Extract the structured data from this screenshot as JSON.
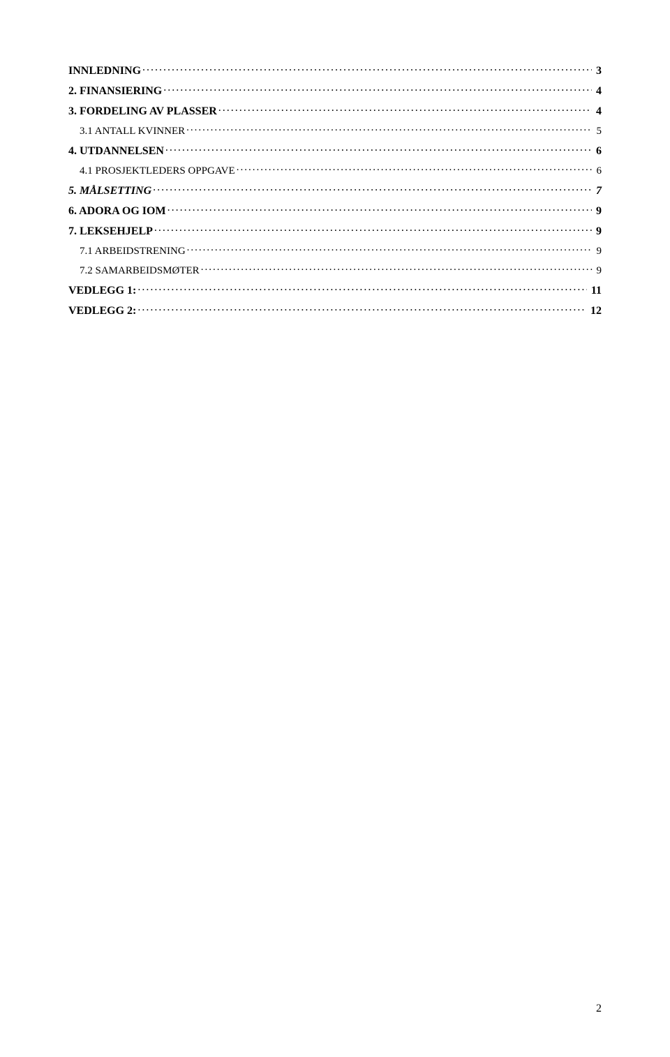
{
  "toc": {
    "entries": [
      {
        "level": 1,
        "italic": false,
        "title": "INNLEDNING",
        "page": "3",
        "smallcaps": false
      },
      {
        "level": 1,
        "italic": false,
        "title": "2. FINANSIERING",
        "page": "4",
        "smallcaps": false
      },
      {
        "level": 1,
        "italic": false,
        "title": "3. FORDELING AV PLASSER",
        "page": "4",
        "smallcaps": false
      },
      {
        "level": 2,
        "italic": false,
        "title": "3.1 ANTALL KVINNER",
        "page": "5",
        "smallcaps": true
      },
      {
        "level": 1,
        "italic": false,
        "title": "4. UTDANNELSEN",
        "page": "6",
        "smallcaps": false
      },
      {
        "level": 2,
        "italic": false,
        "title": "4.1 PROSJEKTLEDERS OPPGAVE",
        "page": "6",
        "smallcaps": true
      },
      {
        "level": 1,
        "italic": true,
        "title": "5. MÅLSETTING",
        "page": "7",
        "smallcaps": false
      },
      {
        "level": 1,
        "italic": false,
        "title": "6. ADORA OG IOM",
        "page": "9",
        "smallcaps": false
      },
      {
        "level": 1,
        "italic": false,
        "title": "7. LEKSEHJELP",
        "page": "9",
        "smallcaps": false
      },
      {
        "level": 2,
        "italic": false,
        "title": "7.1 ARBEIDSTRENING",
        "page": "9",
        "smallcaps": true
      },
      {
        "level": 2,
        "italic": false,
        "title": "7.2 SAMARBEIDSMØTER",
        "page": "9",
        "smallcaps": true
      },
      {
        "level": 1,
        "italic": false,
        "title": "VEDLEGG 1:",
        "page": "11",
        "smallcaps": false
      },
      {
        "level": 1,
        "italic": false,
        "title": "VEDLEGG 2:",
        "page": "12",
        "smallcaps": false
      }
    ]
  },
  "footer": {
    "page_number": "2"
  },
  "style": {
    "background_color": "#ffffff",
    "text_color": "#000000",
    "font_family": "Times New Roman",
    "level1_fontsize": 16,
    "level2_fontsize": 15
  }
}
